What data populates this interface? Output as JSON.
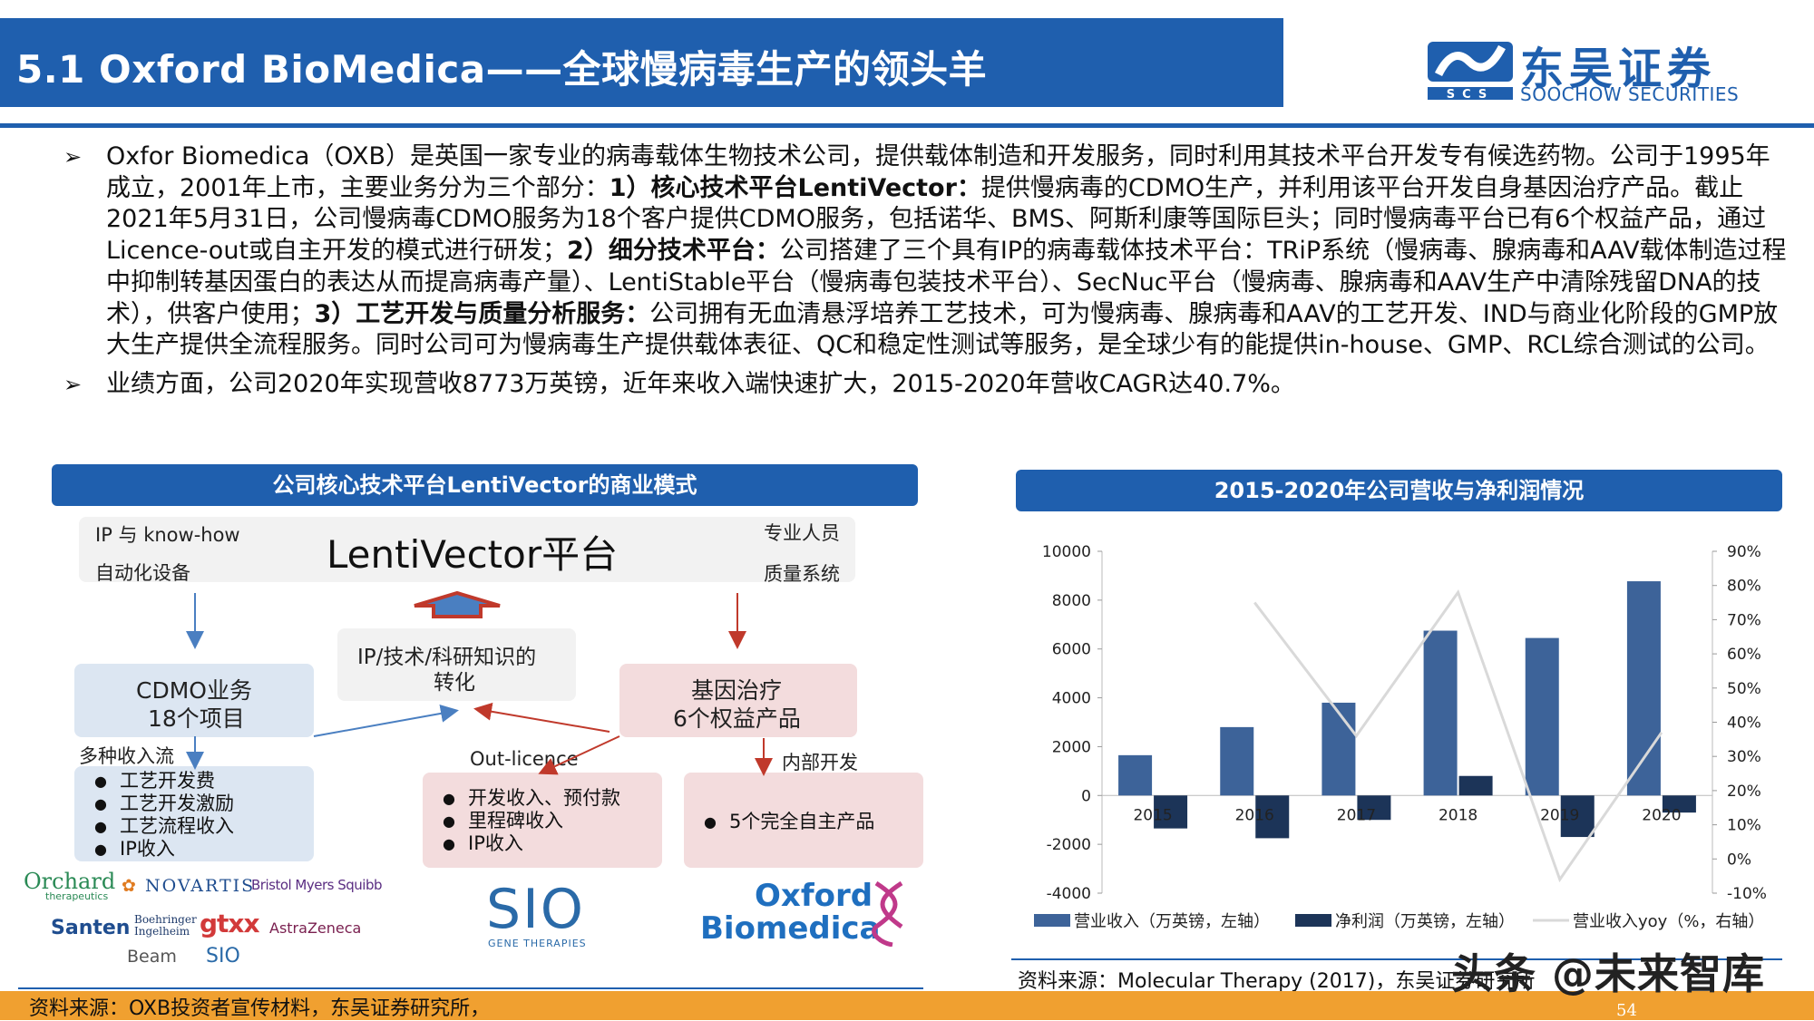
{
  "title": "5.1 Oxford BioMedica——全球慢病毒生产的领头羊",
  "logo": {
    "cn": "东吴证券",
    "en": "SOOCHOW SECURITIES",
    "mark": "SCS"
  },
  "bullets": [
    {
      "mark": "➢",
      "parts": [
        {
          "t": "Oxfor Biomedica（OXB）是英国一家专业的病毒载体生物技术公司，提供载体制造和开发服务，同时利用其技术平台开发专有候选药物。公司于1995年成立，2001年上市，主要业务分为三个部分：",
          "b": false
        },
        {
          "t": "1）核心技术平台LentiVector：",
          "b": true
        },
        {
          "t": "提供慢病毒的CDMO生产，并利用该平台开发自身基因治疗产品。截止2021年5月31日，公司慢病毒CDMO服务为18个客户提供CDMO服务，包括诺华、BMS、阿斯利康等国际巨头；同时慢病毒平台已有6个权益产品，通过Licence-out或自主开发的模式进行研发；",
          "b": false
        },
        {
          "t": "2）细分技术平台：",
          "b": true
        },
        {
          "t": "公司搭建了三个具有IP的病毒载体技术平台：TRiP系统（慢病毒、腺病毒和AAV载体制造过程中抑制转基因蛋白的表达从而提高病毒产量）、LentiStable平台（慢病毒包装技术平台）、SecNuc平台（慢病毒、腺病毒和AAV生产中清除残留DNA的技术），供客户使用；",
          "b": false
        },
        {
          "t": "3）工艺开发与质量分析服务：",
          "b": true
        },
        {
          "t": "公司拥有无血清悬浮培养工艺技术，可为慢病毒、腺病毒和AAV的工艺开发、IND与商业化阶段的GMP放大生产提供全流程服务。同时公司可为慢病毒生产提供载体表征、QC和稳定性测试等服务，是全球少有的能提供in-house、GMP、RCL综合测试的公司。",
          "b": false
        }
      ]
    },
    {
      "mark": "➢",
      "parts": [
        {
          "t": "业绩方面，公司2020年实现营收8773万英镑，近年来收入端快速扩大，2015-2020年营收CAGR达40.7%。",
          "b": false
        }
      ]
    }
  ],
  "left_panel": {
    "header": "公司核心技术平台LentiVector的商业模式",
    "platform": {
      "name": "LentiVector平台",
      "tl": "IP 与 know-how",
      "bl": "自动化设备",
      "tr": "专业人员",
      "br": "质量系统"
    },
    "ip_box": [
      "IP/技术/科研知识的",
      "转化"
    ],
    "cdmo_box": [
      "CDMO业务",
      "18个项目"
    ],
    "gene_box": [
      "基因治疗",
      "6个权益产品"
    ],
    "revenue_label": "多种收入流",
    "revenue_items": [
      "工艺开发费",
      "工艺开发激励",
      "工艺流程收入",
      "IP收入"
    ],
    "outlicence_label": "Out-licence",
    "outlicence_items": [
      "开发收入、预付款",
      "里程碑收入",
      "IP收入"
    ],
    "internal_label": "内部开发",
    "internal_items": [
      "5个完全自主产品"
    ],
    "brands": {
      "orchard": "Orchard",
      "orchard_sub": "therapeutics",
      "novartis": "NOVARTIS",
      "bms": "Bristol Myers Squibb",
      "santen": "Santen",
      "boehringer": "Boehringer Ingelheim",
      "gtx": "gtxx",
      "astrazeneca": "AstraZeneca",
      "beam": "Beam",
      "sio_small": "SIO",
      "sio_big": "SIO",
      "sio_sub": "GENE THERAPIES",
      "oxford1": "Oxford",
      "oxford2": "Biomedica"
    },
    "source": "资料来源：OXB投资者宣传材料，东吴证券研究所，"
  },
  "chart_data": {
    "type": "bar",
    "title": "2015-2020年公司营收与净利润情况",
    "categories": [
      "2015",
      "2016",
      "2017",
      "2018",
      "2019",
      "2020"
    ],
    "series": [
      {
        "name": "营业收入（万英镑，左轴）",
        "kind": "bar",
        "axis": "left",
        "color": "#3d6399",
        "values": [
          1650,
          2800,
          3800,
          6750,
          6450,
          8773
        ]
      },
      {
        "name": "净利润（万英镑，左轴）",
        "kind": "bar",
        "axis": "left",
        "color": "#1c3458",
        "values": [
          -1350,
          -1750,
          -1000,
          800,
          -1700,
          -700
        ]
      },
      {
        "name": "营业收入yoy（%，右轴）",
        "kind": "line",
        "axis": "right",
        "color": "#d9d9d9",
        "values": [
          null,
          75,
          36,
          78,
          -6,
          37
        ]
      }
    ],
    "ylim_left": [
      -4000,
      10000
    ],
    "yticks_left": [
      -4000,
      -2000,
      0,
      2000,
      4000,
      6000,
      8000,
      10000
    ],
    "ylim_right": [
      -10,
      90
    ],
    "yticks_right": [
      "-10%",
      "0%",
      "10%",
      "20%",
      "30%",
      "40%",
      "50%",
      "60%",
      "70%",
      "80%",
      "90%"
    ],
    "legend_position": "bottom",
    "source": "资料来源：Molecular Therapy (2017)，东吴证券研究所"
  },
  "footer": {
    "page": "54"
  },
  "watermark": "头条 @未来智库"
}
